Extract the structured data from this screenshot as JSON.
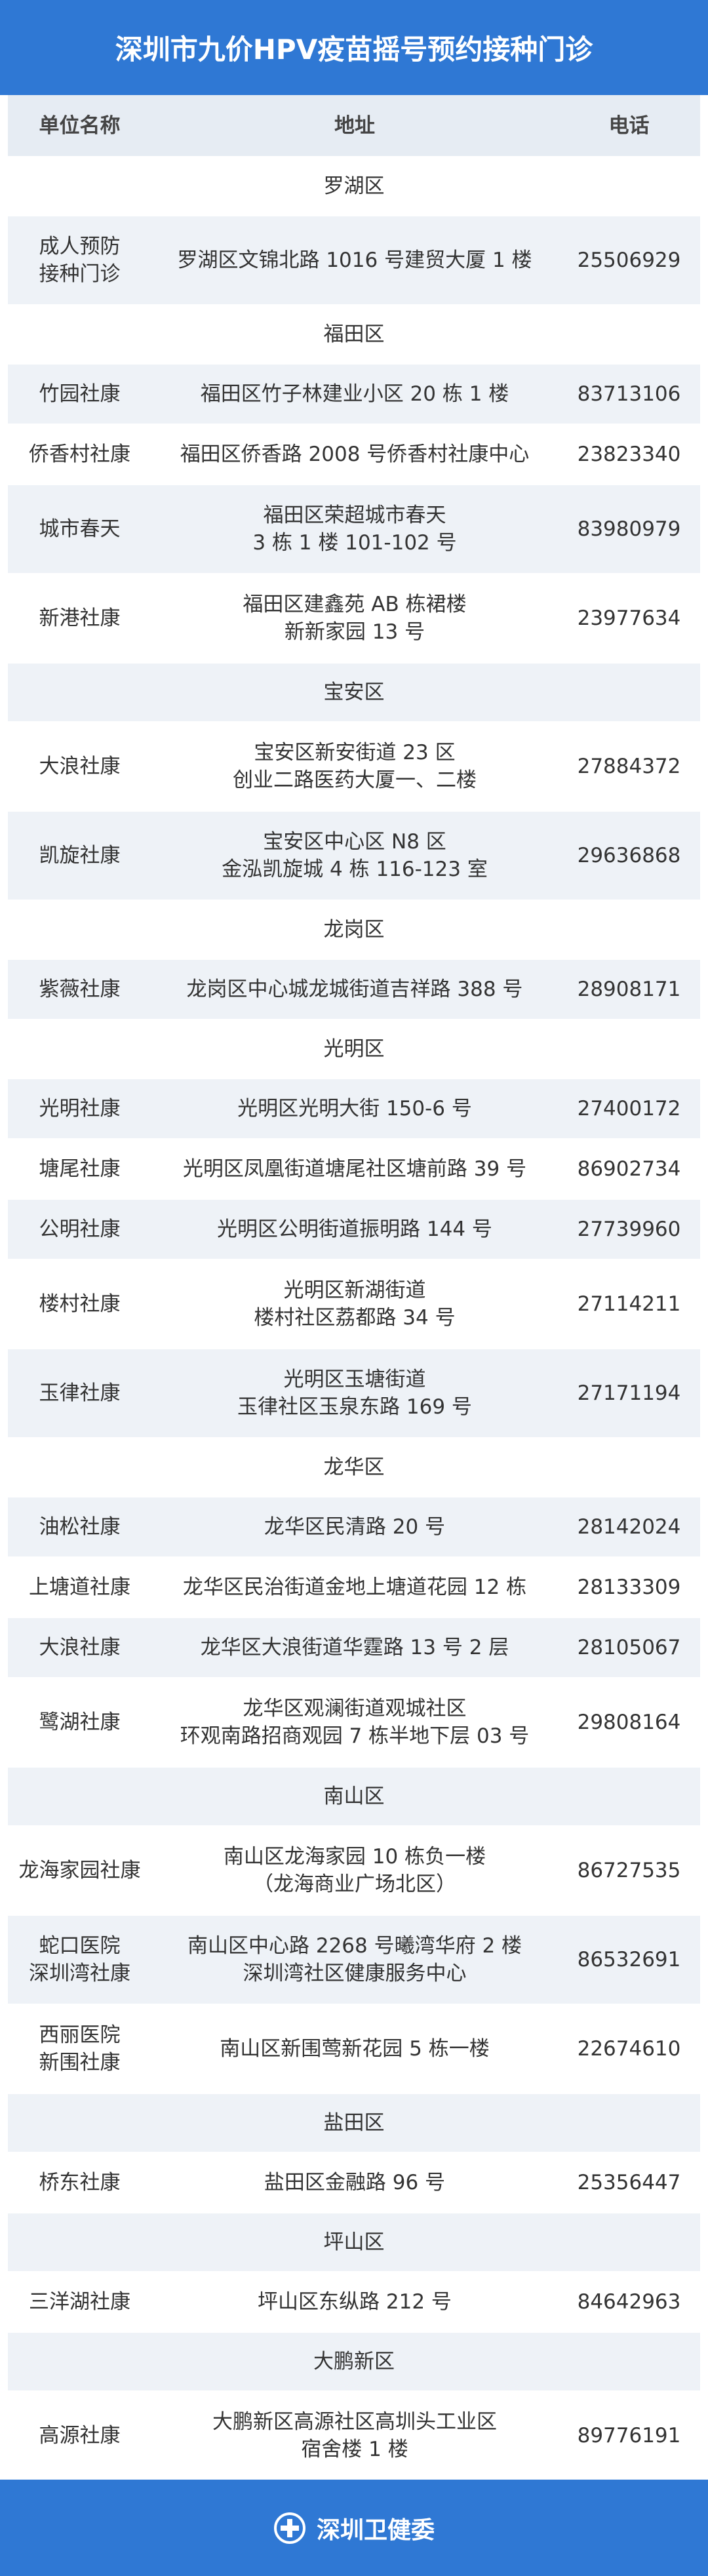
{
  "header": {
    "title": "深圳市九价HPV疫苗摇号预约接种门诊"
  },
  "table": {
    "columns": [
      "单位名称",
      "地址",
      "电话"
    ],
    "sections": [
      {
        "district": "罗湖区",
        "rows": [
          [
            [
              "成人预防",
              "接种门诊"
            ],
            [
              "罗湖区文锦北路 1016 号建贸大厦 1 楼"
            ],
            [
              "25506929"
            ]
          ]
        ]
      },
      {
        "district": "福田区",
        "rows": [
          [
            [
              "竹园社康"
            ],
            [
              "福田区竹子林建业小区 20 栋 1 楼"
            ],
            [
              "83713106"
            ]
          ],
          [
            [
              "侨香村社康"
            ],
            [
              "福田区侨香路 2008 号侨香村社康中心"
            ],
            [
              "23823340"
            ]
          ],
          [
            [
              "城市春天"
            ],
            [
              "福田区荣超城市春天",
              "3 栋 1 楼 101-102 号"
            ],
            [
              "83980979"
            ]
          ],
          [
            [
              "新港社康"
            ],
            [
              "福田区建鑫苑 AB 栋裙楼",
              "新新家园 13 号"
            ],
            [
              "23977634"
            ]
          ]
        ]
      },
      {
        "district": "宝安区",
        "rows": [
          [
            [
              "大浪社康"
            ],
            [
              "宝安区新安街道 23 区",
              "创业二路医药大厦一、二楼"
            ],
            [
              "27884372"
            ]
          ],
          [
            [
              "凯旋社康"
            ],
            [
              "宝安区中心区 N8 区",
              "金泓凯旋城 4 栋 116-123 室"
            ],
            [
              "29636868"
            ]
          ]
        ]
      },
      {
        "district": "龙岗区",
        "rows": [
          [
            [
              "紫薇社康"
            ],
            [
              "龙岗区中心城龙城街道吉祥路 388 号"
            ],
            [
              "28908171"
            ]
          ]
        ]
      },
      {
        "district": "光明区",
        "rows": [
          [
            [
              "光明社康"
            ],
            [
              "光明区光明大街 150-6 号"
            ],
            [
              "27400172"
            ]
          ],
          [
            [
              "塘尾社康"
            ],
            [
              "光明区凤凰街道塘尾社区塘前路 39 号"
            ],
            [
              "86902734"
            ]
          ],
          [
            [
              "公明社康"
            ],
            [
              "光明区公明街道振明路 144 号"
            ],
            [
              "27739960"
            ]
          ],
          [
            [
              "楼村社康"
            ],
            [
              "光明区新湖街道",
              "楼村社区荔都路 34 号"
            ],
            [
              "27114211"
            ]
          ],
          [
            [
              "玉律社康"
            ],
            [
              "光明区玉塘街道",
              "玉律社区玉泉东路 169 号"
            ],
            [
              "27171194"
            ]
          ]
        ]
      },
      {
        "district": "龙华区",
        "rows": [
          [
            [
              "油松社康"
            ],
            [
              "龙华区民清路 20 号"
            ],
            [
              "28142024"
            ]
          ],
          [
            [
              "上塘道社康"
            ],
            [
              "龙华区民治街道金地上塘道花园 12 栋"
            ],
            [
              "28133309"
            ]
          ],
          [
            [
              "大浪社康"
            ],
            [
              "龙华区大浪街道华霆路 13 号 2 层"
            ],
            [
              "28105067"
            ]
          ],
          [
            [
              "鹭湖社康"
            ],
            [
              "龙华区观澜街道观城社区",
              "环观南路招商观园 7 栋半地下层 03 号"
            ],
            [
              "29808164"
            ]
          ]
        ]
      },
      {
        "district": "南山区",
        "rows": [
          [
            [
              "龙海家园社康"
            ],
            [
              "南山区龙海家园 10 栋负一楼",
              "（龙海商业广场北区）"
            ],
            [
              "86727535"
            ]
          ],
          [
            [
              "蛇口医院",
              "深圳湾社康"
            ],
            [
              "南山区中心路 2268 号曦湾华府 2 楼",
              "深圳湾社区健康服务中心"
            ],
            [
              "86532691"
            ]
          ],
          [
            [
              "西丽医院",
              "新围社康"
            ],
            [
              "南山区新围莺新花园 5 栋一楼"
            ],
            [
              "22674610"
            ]
          ]
        ]
      },
      {
        "district": "盐田区",
        "rows": [
          [
            [
              "桥东社康"
            ],
            [
              "盐田区金融路 96 号"
            ],
            [
              "25356447"
            ]
          ]
        ]
      },
      {
        "district": "坪山区",
        "rows": [
          [
            [
              "三洋湖社康"
            ],
            [
              "坪山区东纵路 212 号"
            ],
            [
              "84642963"
            ]
          ]
        ]
      },
      {
        "district": "大鹏新区",
        "rows": [
          [
            [
              "高源社康"
            ],
            [
              "大鹏新区高源社区高圳头工业区",
              "宿舍楼 1 楼"
            ],
            [
              "89776191"
            ]
          ]
        ]
      }
    ]
  },
  "footer": {
    "text": "深圳卫健委"
  }
}
